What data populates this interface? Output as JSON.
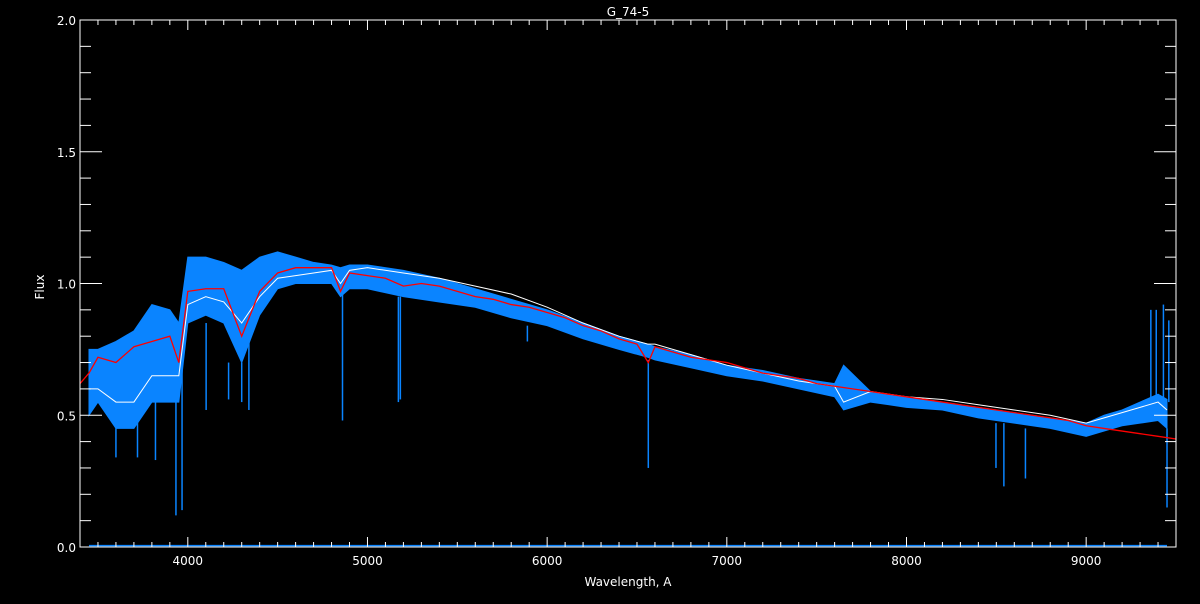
{
  "chart_data": {
    "type": "line",
    "title": "G_74-5",
    "xlabel": "Wavelength, A",
    "ylabel": "Flux",
    "xlim": [
      3400,
      9500
    ],
    "ylim": [
      0.0,
      2.0
    ],
    "x_major_ticks": [
      4000,
      5000,
      6000,
      7000,
      8000,
      9000
    ],
    "x_tick_labels": [
      "4000",
      "5000",
      "6000",
      "7000",
      "8000",
      "9000"
    ],
    "x_minor_step": 100,
    "y_major_ticks": [
      0.0,
      0.5,
      1.0,
      1.5,
      2.0
    ],
    "y_tick_labels": [
      "0.0",
      "0.5",
      "1.0",
      "1.5",
      "2.0"
    ],
    "y_minor_step": 0.1,
    "grid": false,
    "background": "#000000",
    "axis_color": "#ffffff",
    "series": [
      {
        "color": "#0a84ff",
        "style": "band",
        "x": [
          3450,
          3500,
          3600,
          3700,
          3800,
          3900,
          3950,
          4000,
          4100,
          4200,
          4300,
          4400,
          4500,
          4600,
          4700,
          4800,
          4850,
          4900,
          5000,
          5200,
          5400,
          5600,
          5800,
          6000,
          6200,
          6400,
          6560,
          6600,
          6800,
          7000,
          7200,
          7400,
          7600,
          7650,
          7800,
          8000,
          8200,
          8400,
          8600,
          8800,
          9000,
          9100,
          9200,
          9300,
          9400,
          9450
        ],
        "upper": [
          0.75,
          0.75,
          0.78,
          0.82,
          0.92,
          0.9,
          0.85,
          1.1,
          1.1,
          1.08,
          1.05,
          1.1,
          1.12,
          1.1,
          1.08,
          1.07,
          1.06,
          1.07,
          1.07,
          1.05,
          1.02,
          0.98,
          0.94,
          0.9,
          0.85,
          0.8,
          0.77,
          0.76,
          0.73,
          0.69,
          0.67,
          0.64,
          0.62,
          0.69,
          0.59,
          0.57,
          0.55,
          0.53,
          0.51,
          0.49,
          0.47,
          0.5,
          0.52,
          0.55,
          0.58,
          0.56
        ],
        "lower": [
          0.5,
          0.55,
          0.45,
          0.45,
          0.55,
          0.55,
          0.55,
          0.85,
          0.88,
          0.85,
          0.7,
          0.88,
          0.98,
          1.0,
          1.0,
          1.0,
          0.95,
          0.98,
          0.98,
          0.95,
          0.93,
          0.91,
          0.87,
          0.84,
          0.79,
          0.75,
          0.72,
          0.71,
          0.68,
          0.65,
          0.63,
          0.6,
          0.57,
          0.52,
          0.55,
          0.53,
          0.52,
          0.49,
          0.47,
          0.45,
          0.42,
          0.44,
          0.46,
          0.47,
          0.48,
          0.45
        ],
        "lines": [
          [
            3934,
            0.12
          ],
          [
            3968,
            0.14
          ],
          [
            3820,
            0.33
          ],
          [
            3720,
            0.34
          ],
          [
            3600,
            0.34
          ],
          [
            4102,
            0.52
          ],
          [
            4227,
            0.56
          ],
          [
            4300,
            0.55
          ],
          [
            4340,
            0.52
          ],
          [
            4861,
            0.48
          ],
          [
            5172,
            0.55
          ],
          [
            5183,
            0.56
          ],
          [
            5890,
            0.78
          ],
          [
            6563,
            0.3
          ],
          [
            8498,
            0.3
          ],
          [
            8542,
            0.23
          ],
          [
            8662,
            0.26
          ],
          [
            9450,
            0.15
          ]
        ],
        "spikes": [
          [
            9360,
            0.9
          ],
          [
            9390,
            0.9
          ],
          [
            9430,
            0.92
          ],
          [
            9460,
            0.86
          ]
        ],
        "baseline": 0.005
      },
      {
        "color": "#ffffff",
        "style": "line",
        "x": [
          3450,
          3500,
          3600,
          3700,
          3800,
          3900,
          3950,
          4000,
          4100,
          4200,
          4300,
          4400,
          4500,
          4600,
          4700,
          4800,
          4850,
          4900,
          5000,
          5200,
          5400,
          5600,
          5800,
          6000,
          6200,
          6400,
          6560,
          6600,
          6800,
          7000,
          7200,
          7400,
          7600,
          7650,
          7800,
          8000,
          8200,
          8400,
          8600,
          8800,
          9000,
          9100,
          9200,
          9300,
          9400,
          9450
        ],
        "y": [
          0.6,
          0.6,
          0.55,
          0.55,
          0.65,
          0.65,
          0.65,
          0.92,
          0.95,
          0.93,
          0.85,
          0.95,
          1.02,
          1.03,
          1.04,
          1.05,
          1.0,
          1.05,
          1.06,
          1.04,
          1.02,
          0.99,
          0.96,
          0.91,
          0.85,
          0.8,
          0.77,
          0.77,
          0.73,
          0.69,
          0.66,
          0.63,
          0.61,
          0.55,
          0.59,
          0.57,
          0.56,
          0.54,
          0.52,
          0.5,
          0.47,
          0.49,
          0.51,
          0.53,
          0.55,
          0.52
        ]
      },
      {
        "color": "#ff0000",
        "style": "line",
        "x": [
          3400,
          3450,
          3500,
          3600,
          3700,
          3800,
          3900,
          3950,
          4000,
          4100,
          4200,
          4300,
          4400,
          4500,
          4600,
          4700,
          4800,
          4850,
          4900,
          5000,
          5100,
          5200,
          5300,
          5400,
          5500,
          5600,
          5700,
          5800,
          5900,
          6000,
          6100,
          6200,
          6300,
          6400,
          6500,
          6563,
          6600,
          6700,
          6800,
          6900,
          7000,
          7100,
          7200,
          7300,
          7400,
          7500,
          7600,
          7700,
          7800,
          7900,
          8000,
          8100,
          8200,
          8300,
          8400,
          8500,
          8600,
          8700,
          8800,
          8900,
          9000,
          9100,
          9200,
          9300,
          9400,
          9500
        ],
        "y": [
          0.62,
          0.66,
          0.72,
          0.7,
          0.76,
          0.78,
          0.8,
          0.7,
          0.97,
          0.98,
          0.98,
          0.8,
          0.97,
          1.04,
          1.06,
          1.06,
          1.06,
          0.97,
          1.04,
          1.03,
          1.02,
          0.99,
          1.0,
          0.99,
          0.97,
          0.95,
          0.94,
          0.92,
          0.91,
          0.89,
          0.87,
          0.84,
          0.82,
          0.79,
          0.77,
          0.7,
          0.76,
          0.74,
          0.72,
          0.71,
          0.7,
          0.68,
          0.66,
          0.65,
          0.64,
          0.62,
          0.61,
          0.6,
          0.59,
          0.58,
          0.57,
          0.56,
          0.55,
          0.54,
          0.53,
          0.52,
          0.51,
          0.5,
          0.49,
          0.48,
          0.46,
          0.45,
          0.44,
          0.43,
          0.42,
          0.41
        ]
      }
    ]
  }
}
